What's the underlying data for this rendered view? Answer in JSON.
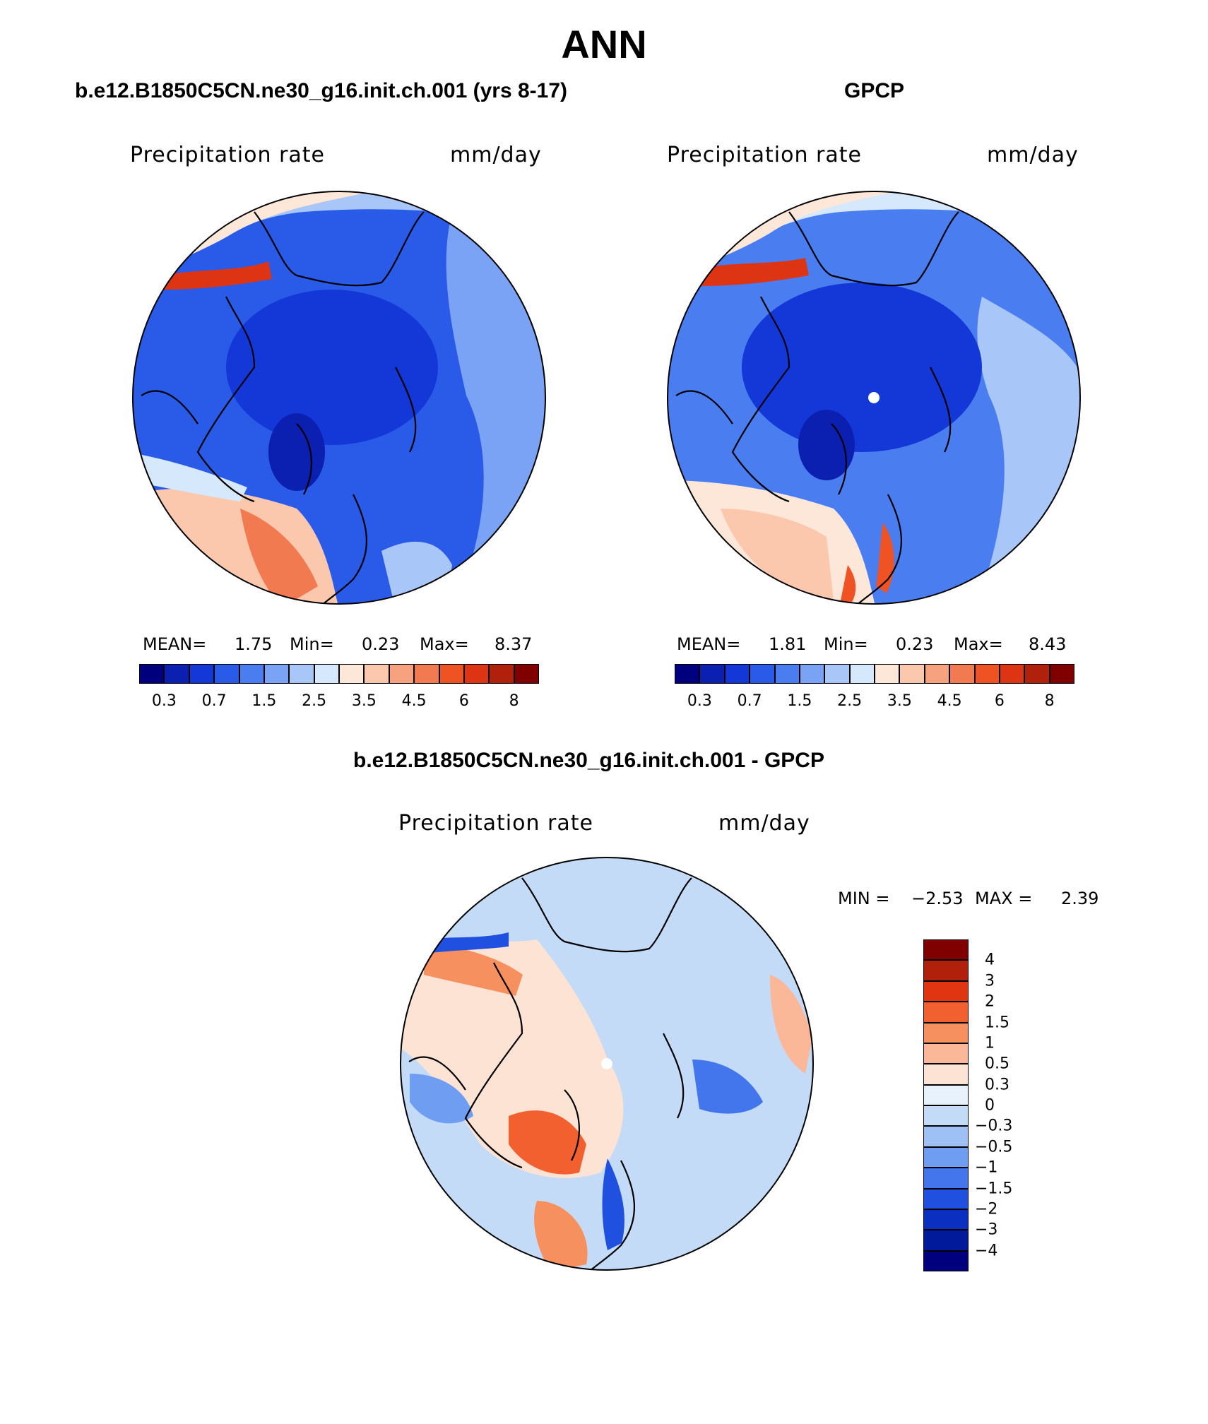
{
  "main_title": "ANN",
  "panels": [
    {
      "id": "model",
      "title": "b.e12.B1850C5CN.ne30_g16.init.ch.001 (yrs 8-17)",
      "variable": "Precipitation rate",
      "units": "mm/day",
      "mean_label": "MEAN=",
      "mean": "1.75",
      "min_label": "Min=",
      "min": "0.23",
      "max_label": "Max=",
      "max": "8.37"
    },
    {
      "id": "obs",
      "title": "GPCP",
      "variable": "Precipitation rate",
      "units": "mm/day",
      "mean_label": "MEAN=",
      "mean": "1.81",
      "min_label": "Min=",
      "min": "0.23",
      "max_label": "Max=",
      "max": "8.43"
    }
  ],
  "diff_panel": {
    "title": "b.e12.B1850C5CN.ne30_g16.init.ch.001 - GPCP",
    "variable": "Precipitation rate",
    "units": "mm/day",
    "min_label": "MIN =",
    "min": "−2.53",
    "max_label": "MAX =",
    "max": "2.39"
  },
  "colorbar_main": {
    "colors": [
      "#00007f",
      "#0b1fb0",
      "#1438d8",
      "#2a5be8",
      "#4a7ef0",
      "#7aa3f5",
      "#a9c6f8",
      "#d6e8fb",
      "#fde7d8",
      "#fbc8ae",
      "#f6a27f",
      "#f27a51",
      "#ef5323",
      "#dd3514",
      "#b0200a",
      "#800000"
    ],
    "labels": [
      "0.3",
      "0.7",
      "1.5",
      "2.5",
      "3.5",
      "4.5",
      "6",
      "8"
    ]
  },
  "colorbar_diff": {
    "colors": [
      "#800000",
      "#b0200a",
      "#e03510",
      "#f26030",
      "#f6905f",
      "#fbb898",
      "#fde3d3",
      "#e8f2fc",
      "#c4dbf8",
      "#9fc0f5",
      "#6f9df1",
      "#4375ec",
      "#2050e0",
      "#0b2fc0",
      "#001a9c",
      "#00007f"
    ],
    "labels": [
      "4",
      "3",
      "2",
      "1.5",
      "1",
      "0.5",
      "0.3",
      "0",
      "−0.3",
      "−0.5",
      "−1",
      "−1.5",
      "−2",
      "−3",
      "−4"
    ]
  }
}
